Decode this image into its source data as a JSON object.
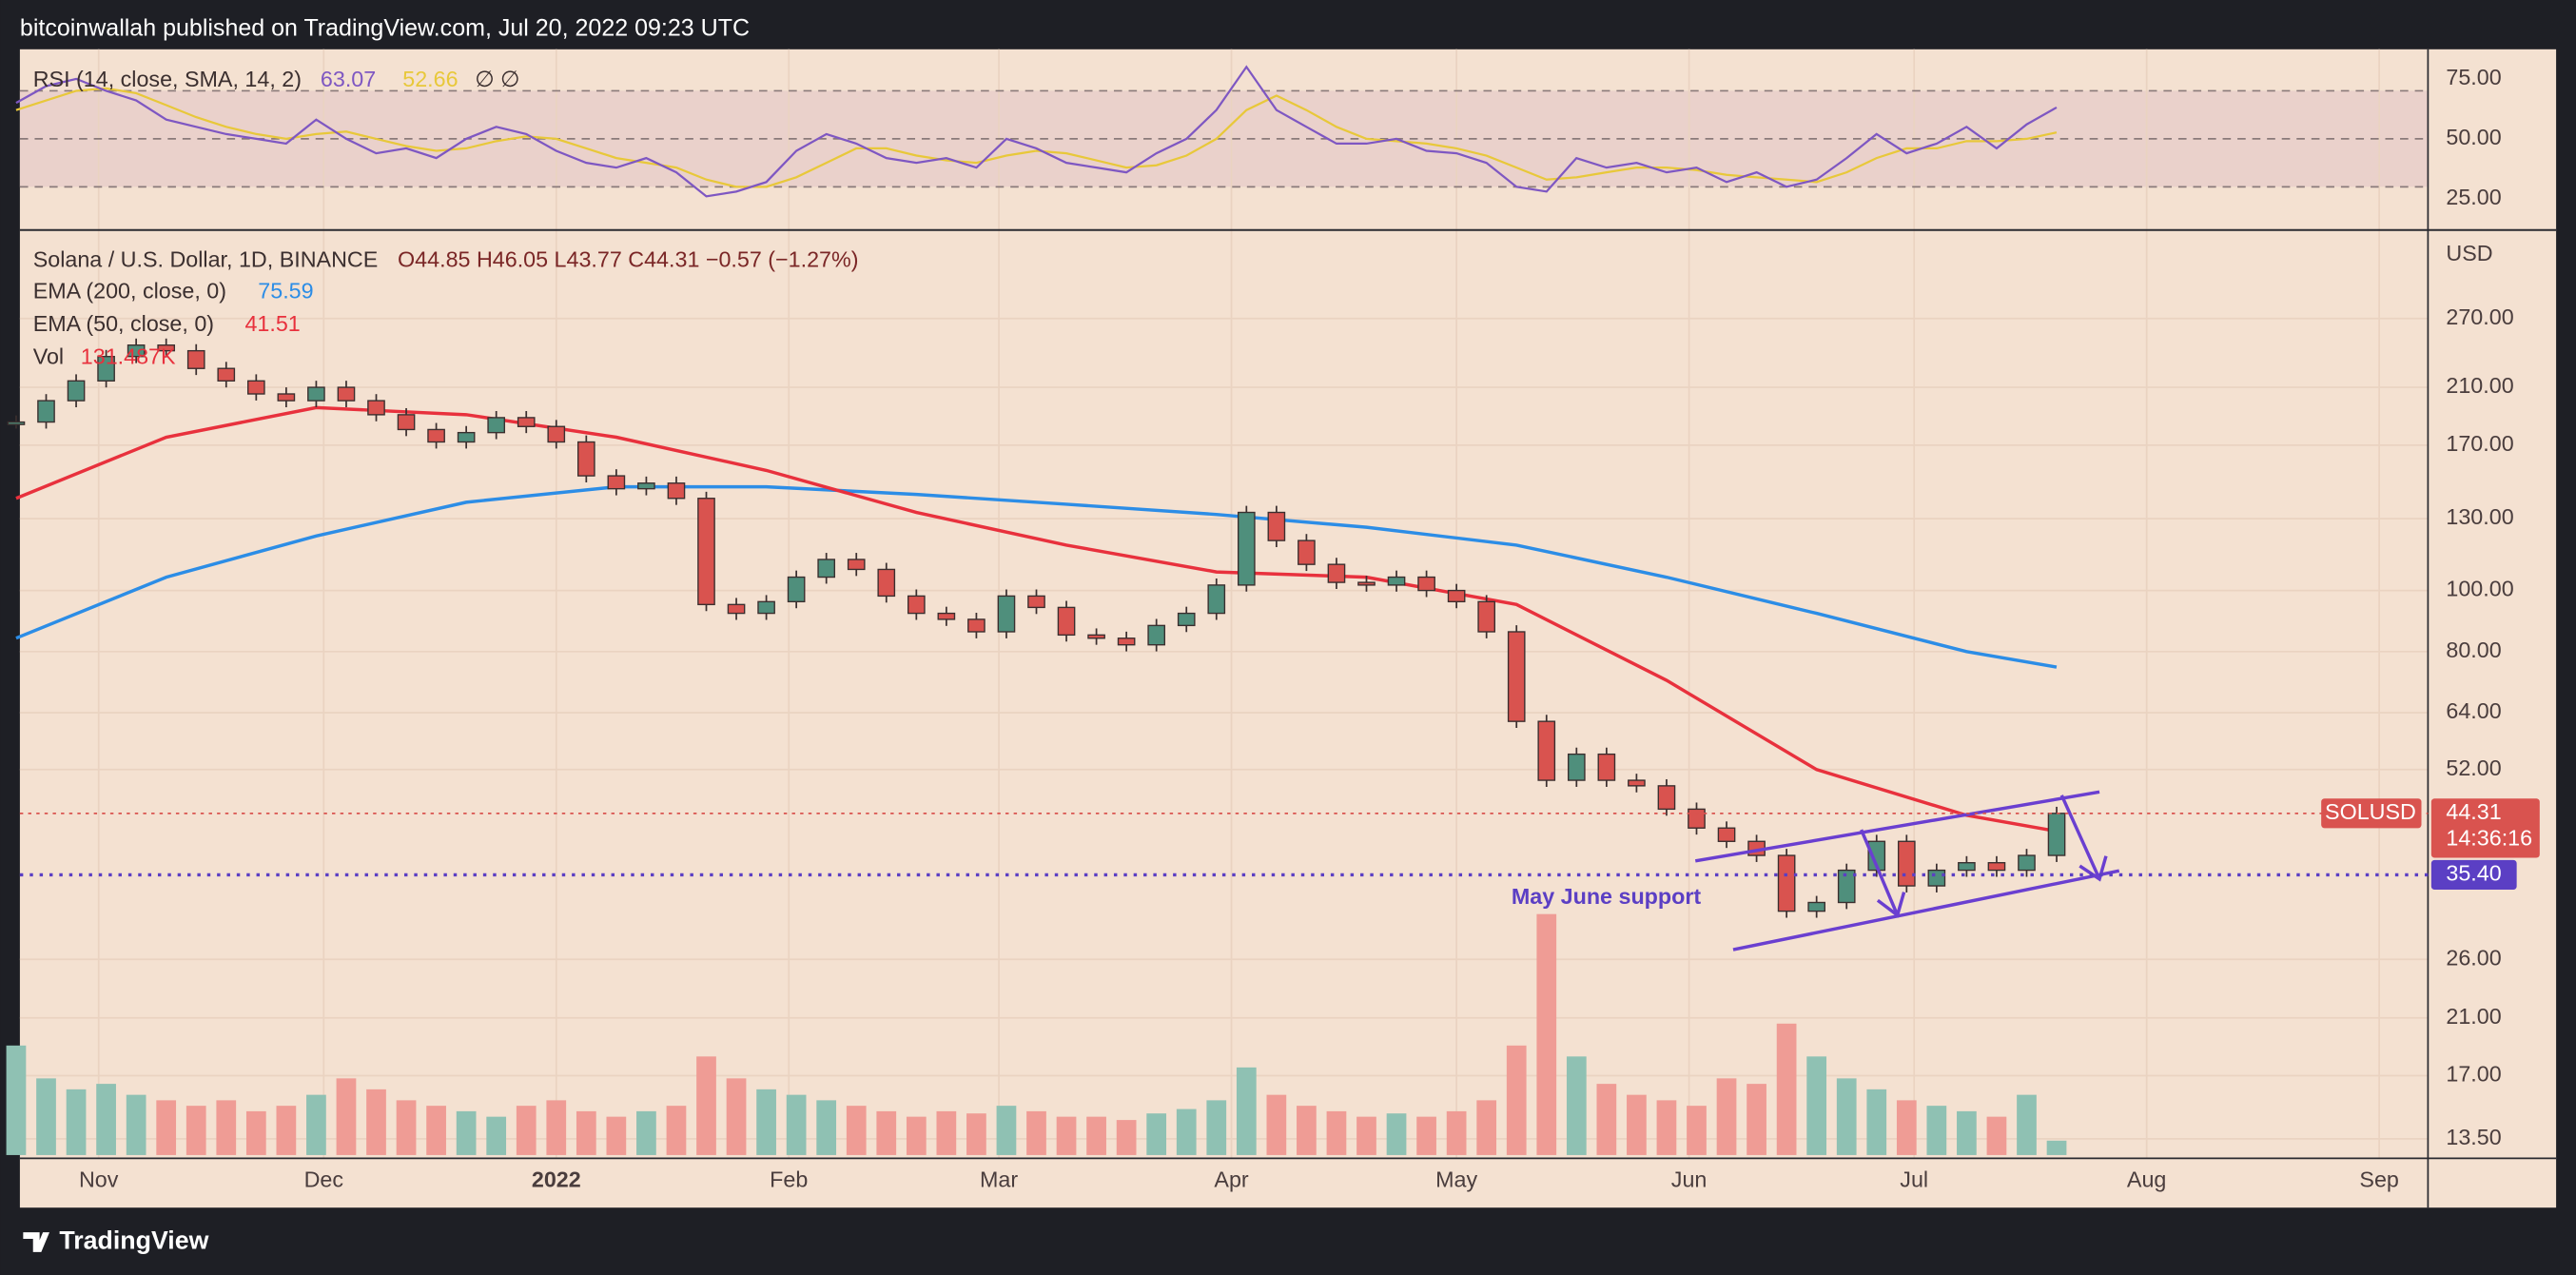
{
  "header": {
    "published": "bitcoinwallah published on TradingView.com, Jul 20, 2022 09:23 UTC"
  },
  "footer": {
    "brand": "TradingView"
  },
  "chart_data": {
    "type": "candlestick",
    "log_scale": true,
    "grid": true,
    "axis_unit": "USD",
    "symbol": "SOLUSD",
    "countdown": "14:36:16",
    "ohlc_legend": "O44.85 H46.05 L43.77 C44.31 −0.57 (−1.27%)",
    "x": [
      -11,
      -7,
      -3,
      1,
      5,
      9,
      13,
      17,
      21,
      25,
      29,
      33,
      37,
      41,
      45,
      49,
      53,
      57,
      61,
      65,
      69,
      73,
      77,
      81,
      85,
      89,
      93,
      97,
      101,
      105,
      109,
      113,
      117,
      121,
      125,
      129,
      133,
      137,
      141,
      145,
      149,
      153,
      157,
      161,
      165,
      169,
      173,
      177,
      181,
      185,
      189,
      193,
      197,
      201,
      205,
      209,
      213,
      217,
      221,
      225,
      229,
      233,
      237,
      241,
      245,
      249,
      253,
      257,
      261
    ],
    "xlim": [
      -10.5,
      310.5
    ],
    "xticks": [
      {
        "value": 0,
        "label": "Nov"
      },
      {
        "value": 30,
        "label": "Dec"
      },
      {
        "value": 61,
        "label": "2022"
      },
      {
        "value": 92,
        "label": "Feb"
      },
      {
        "value": 120,
        "label": "Mar"
      },
      {
        "value": 151,
        "label": "Apr"
      },
      {
        "value": 181,
        "label": "May"
      },
      {
        "value": 212,
        "label": "Jun"
      },
      {
        "value": 242,
        "label": "Jul"
      },
      {
        "value": 273,
        "label": "Aug"
      },
      {
        "value": 304,
        "label": "Sep"
      }
    ],
    "ylim": [
      12.57,
      373
    ],
    "yticks": [
      {
        "value": 270,
        "label": "270.00"
      },
      {
        "value": 210,
        "label": "210.00"
      },
      {
        "value": 170,
        "label": "170.00"
      },
      {
        "value": 130,
        "label": "130.00"
      },
      {
        "value": 100,
        "label": "100.00"
      },
      {
        "value": 80,
        "label": "80.00"
      },
      {
        "value": 64,
        "label": "64.00"
      },
      {
        "value": 52,
        "label": "52.00"
      },
      {
        "value": 26,
        "label": "26.00"
      },
      {
        "value": 21,
        "label": "21.00"
      },
      {
        "value": 17,
        "label": "17.00"
      },
      {
        "value": 13.5,
        "label": "13.50"
      }
    ],
    "support": {
      "value": 35.4,
      "label": "35.40",
      "text": "May June support",
      "color": "#5b3fc4"
    },
    "series": [
      {
        "name": "Solana / U.S. Dollar, 1D, BINANCE",
        "up_color": "#4f8f7c",
        "down_color": "#d9534f",
        "values": [
          185,
          200,
          215,
          235,
          245,
          240,
          225,
          215,
          205,
          200,
          210,
          200,
          190,
          180,
          172,
          178,
          188,
          182,
          172,
          152,
          145,
          148,
          140,
          95,
          92,
          96,
          105,
          112,
          108,
          98,
          92,
          90,
          86,
          98,
          94,
          85,
          84,
          82,
          88,
          92,
          102,
          133,
          120,
          110,
          103,
          102,
          105,
          100,
          96,
          86,
          62,
          50,
          55,
          50,
          49,
          45,
          42,
          40,
          38,
          31,
          32,
          36,
          40,
          34,
          36,
          37,
          36,
          38,
          44.31
        ]
      },
      {
        "name": "EMA (200, close, 0)",
        "color": "#2c8de6",
        "x": [
          -11,
          9,
          29,
          49,
          69,
          89,
          109,
          129,
          149,
          169,
          189,
          209,
          229,
          249,
          261
        ],
        "values": [
          84,
          105,
          122,
          138,
          146,
          146,
          142,
          137,
          132,
          126,
          118,
          105,
          92,
          80,
          75.59
        ]
      },
      {
        "name": "EMA (50, close, 0)",
        "color": "#e8313d",
        "x": [
          -11,
          9,
          29,
          49,
          69,
          89,
          109,
          129,
          149,
          169,
          189,
          209,
          229,
          249,
          261
        ],
        "values": [
          140,
          175,
          195,
          190,
          175,
          155,
          133,
          118,
          107,
          105,
          95,
          72,
          52,
          44,
          41.51
        ]
      },
      {
        "name": "Vol",
        "legend_label": "131.487K",
        "color": "#e8313d",
        "up_color": "#8fc1b3",
        "down_color": "#ef9c95",
        "ylim": [
          0,
          2400
        ],
        "values": [
          1000,
          700,
          600,
          650,
          550,
          500,
          450,
          500,
          400,
          450,
          550,
          700,
          600,
          500,
          450,
          400,
          350,
          450,
          500,
          400,
          350,
          400,
          450,
          900,
          700,
          600,
          550,
          500,
          450,
          400,
          350,
          400,
          380,
          450,
          400,
          350,
          350,
          320,
          380,
          420,
          500,
          800,
          550,
          450,
          400,
          350,
          380,
          350,
          400,
          500,
          1000,
          2200,
          900,
          650,
          550,
          500,
          450,
          700,
          650,
          1200,
          900,
          700,
          600,
          500,
          450,
          400,
          350,
          550,
          131.487
        ]
      }
    ],
    "rsi": {
      "name": "RSI (14, close, SMA, 14, 2)",
      "color": "#7e57c2",
      "extra": "∅ ∅",
      "ylim": [
        12,
        87.3
      ],
      "yticks": [
        {
          "value": 75,
          "label": "75.00"
        },
        {
          "value": 50,
          "label": "50.00"
        },
        {
          "value": 25,
          "label": "25.00"
        }
      ],
      "bands": [
        70,
        50,
        30
      ],
      "values": [
        65,
        72,
        75,
        70,
        66,
        58,
        55,
        52,
        50,
        48,
        58,
        50,
        44,
        46,
        42,
        50,
        55,
        52,
        45,
        40,
        38,
        42,
        36,
        26,
        28,
        32,
        45,
        52,
        48,
        42,
        40,
        42,
        38,
        50,
        46,
        40,
        38,
        36,
        44,
        50,
        62,
        80,
        62,
        55,
        48,
        48,
        50,
        45,
        44,
        40,
        30,
        28,
        42,
        38,
        40,
        36,
        38,
        32,
        36,
        30,
        33,
        42,
        52,
        44,
        48,
        55,
        46,
        56,
        63.07
      ],
      "sma": {
        "color": "#e8c83a",
        "values": [
          62,
          66,
          70,
          71,
          69,
          64,
          59,
          55,
          52,
          50,
          52,
          53,
          50,
          47,
          45,
          46,
          49,
          51,
          50,
          46,
          42,
          40,
          38,
          33,
          30,
          30,
          34,
          40,
          46,
          46,
          43,
          41,
          40,
          43,
          45,
          44,
          41,
          38,
          39,
          43,
          50,
          62,
          68,
          62,
          55,
          50,
          49,
          48,
          46,
          43,
          38,
          33,
          34,
          36,
          38,
          38,
          37,
          35,
          34,
          33,
          32,
          36,
          42,
          46,
          46,
          49,
          49,
          50,
          52.66
        ]
      }
    }
  }
}
